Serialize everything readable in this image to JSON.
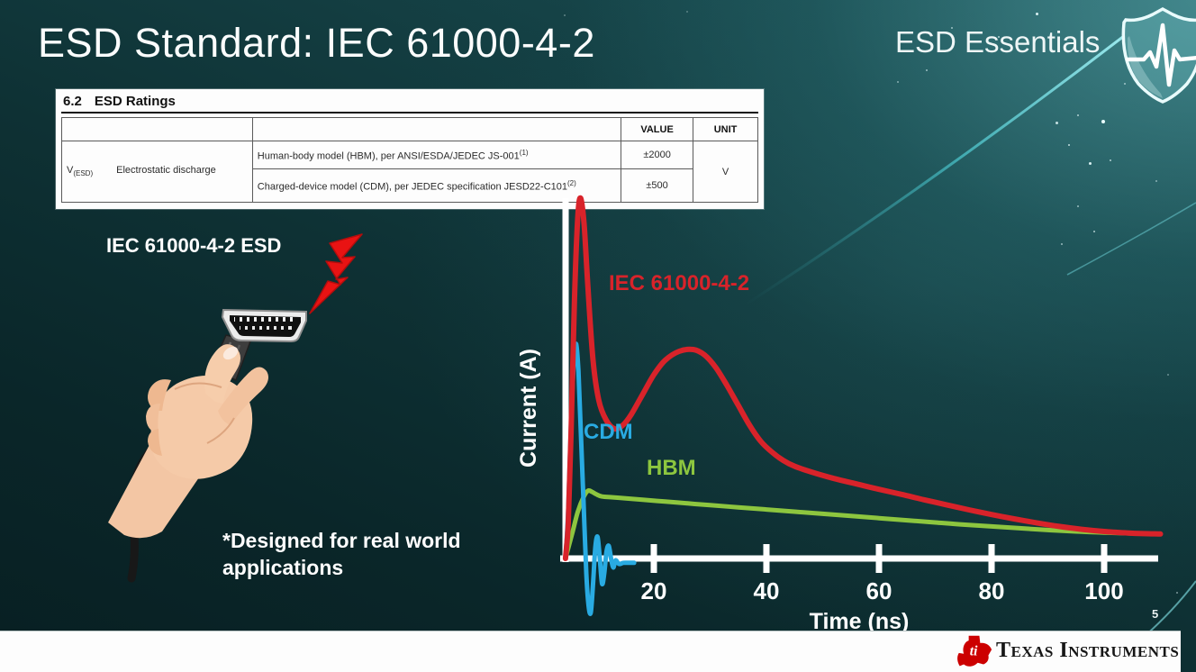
{
  "slide": {
    "title": "ESD Standard: IEC 61000-4-2",
    "program": "ESD Essentials",
    "page_number": "5",
    "footer_brand": "Texas Instruments"
  },
  "colors": {
    "iec_red": "#d8232a",
    "cdm_blue": "#29abe2",
    "hbm_green": "#8dc63f",
    "ti_red": "#cc0000",
    "axis_white": "#ffffff",
    "background_dark_teal": "#0a2629",
    "background_light_teal": "#2e7478"
  },
  "icons": {
    "brand_shield": "shield-pulse-icon",
    "bolt": "lightning-bolt-icon",
    "logo": "ti-texas-logo",
    "illustration": "hand-holding-hdmi-cable"
  },
  "ratings_table": {
    "section": "6.2",
    "heading": "ESD Ratings",
    "col_value": "VALUE",
    "col_unit": "UNIT",
    "param_symbol": "V",
    "param_symbol_sub": "(ESD)",
    "param_name": "Electrostatic discharge",
    "rows": [
      {
        "desc": "Human-body model (HBM), per ANSI/ESDA/JEDEC JS-001",
        "sup": "(1)",
        "value": "±2000"
      },
      {
        "desc": "Charged-device model (CDM), per JEDEC specification JESD22-C101",
        "sup": "(2)",
        "value": "±500"
      }
    ],
    "unit": "V"
  },
  "illustration": {
    "label": "IEC 61000-4-2 ESD",
    "note_line1": "*Designed for real world",
    "note_line2": "applications"
  },
  "chart_data": {
    "type": "line",
    "title": "",
    "xlabel": "Time (ns)",
    "ylabel": "Current (A)",
    "x_ticks": [
      20,
      40,
      60,
      80,
      100
    ],
    "xlim": [
      0,
      110
    ],
    "ylim_rel": [
      -0.16,
      1.05
    ],
    "y_units": "relative amplitude (y axis unlabeled)",
    "grid": false,
    "legend_position": "inline labels next to curves",
    "series": [
      {
        "name": "HBM",
        "color": "#8dc63f",
        "points": [
          [
            4.3,
            0
          ],
          [
            5.5,
            0.07
          ],
          [
            6.5,
            0.13
          ],
          [
            7.5,
            0.17
          ],
          [
            8.3,
            0.188
          ],
          [
            9.0,
            0.185
          ],
          [
            9.8,
            0.178
          ],
          [
            10.8,
            0.172
          ],
          [
            12.5,
            0.17
          ],
          [
            15,
            0.167
          ],
          [
            18,
            0.163
          ],
          [
            22,
            0.158
          ],
          [
            26,
            0.153
          ],
          [
            30,
            0.148
          ],
          [
            35,
            0.142
          ],
          [
            40,
            0.136
          ],
          [
            45,
            0.13
          ],
          [
            50,
            0.124
          ],
          [
            55,
            0.118
          ],
          [
            60,
            0.112
          ],
          [
            65,
            0.106
          ],
          [
            70,
            0.1
          ],
          [
            75,
            0.094
          ],
          [
            80,
            0.089
          ],
          [
            85,
            0.084
          ],
          [
            90,
            0.079
          ],
          [
            95,
            0.075
          ],
          [
            100,
            0.072
          ],
          [
            104,
            0.07
          ],
          [
            107,
            0.069
          ]
        ]
      },
      {
        "name": "CDM",
        "color": "#29abe2",
        "points": [
          [
            4.3,
            0
          ],
          [
            4.8,
            0.14
          ],
          [
            5.3,
            0.38
          ],
          [
            5.8,
            0.55
          ],
          [
            6.2,
            0.595
          ],
          [
            6.6,
            0.52
          ],
          [
            7.0,
            0.36
          ],
          [
            7.5,
            0.16
          ],
          [
            8.0,
            -0.04
          ],
          [
            8.4,
            -0.13
          ],
          [
            8.8,
            -0.15
          ],
          [
            9.2,
            -0.07
          ],
          [
            9.6,
            0.03
          ],
          [
            10.0,
            0.06
          ],
          [
            10.4,
            0.0
          ],
          [
            10.8,
            -0.07
          ],
          [
            11.2,
            -0.04
          ],
          [
            11.6,
            0.02
          ],
          [
            12.0,
            0.035
          ],
          [
            12.4,
            0.0
          ],
          [
            12.8,
            -0.025
          ],
          [
            13.2,
            -0.005
          ],
          [
            13.8,
            -0.015
          ],
          [
            14.6,
            -0.012
          ],
          [
            15.6,
            -0.012
          ],
          [
            16.5,
            -0.012
          ]
        ]
      },
      {
        "name": "IEC 61000-4-2",
        "color": "#d8232a",
        "points": [
          [
            4.3,
            0
          ],
          [
            4.8,
            0.1
          ],
          [
            5.3,
            0.35
          ],
          [
            5.9,
            0.72
          ],
          [
            6.5,
            0.95
          ],
          [
            7.0,
            1.0
          ],
          [
            7.6,
            0.93
          ],
          [
            8.3,
            0.75
          ],
          [
            9.2,
            0.55
          ],
          [
            10.2,
            0.44
          ],
          [
            11.5,
            0.385
          ],
          [
            13.0,
            0.36
          ],
          [
            14.5,
            0.37
          ],
          [
            16.0,
            0.4
          ],
          [
            18.0,
            0.455
          ],
          [
            20.0,
            0.51
          ],
          [
            22.0,
            0.55
          ],
          [
            24.5,
            0.575
          ],
          [
            27.0,
            0.58
          ],
          [
            29.0,
            0.565
          ],
          [
            31.0,
            0.53
          ],
          [
            33.0,
            0.48
          ],
          [
            35.0,
            0.425
          ],
          [
            37.0,
            0.37
          ],
          [
            39.0,
            0.325
          ],
          [
            41.0,
            0.295
          ],
          [
            43.0,
            0.272
          ],
          [
            45.0,
            0.256
          ],
          [
            48.0,
            0.24
          ],
          [
            52.0,
            0.222
          ],
          [
            56.0,
            0.207
          ],
          [
            60.0,
            0.192
          ],
          [
            64.0,
            0.178
          ],
          [
            68.0,
            0.163
          ],
          [
            72.0,
            0.149
          ],
          [
            76.0,
            0.135
          ],
          [
            80.0,
            0.122
          ],
          [
            84.0,
            0.11
          ],
          [
            88.0,
            0.099
          ],
          [
            92.0,
            0.089
          ],
          [
            96.0,
            0.081
          ],
          [
            100.0,
            0.075
          ],
          [
            104.0,
            0.071
          ],
          [
            107.0,
            0.069
          ],
          [
            110.0,
            0.068
          ]
        ]
      }
    ]
  }
}
